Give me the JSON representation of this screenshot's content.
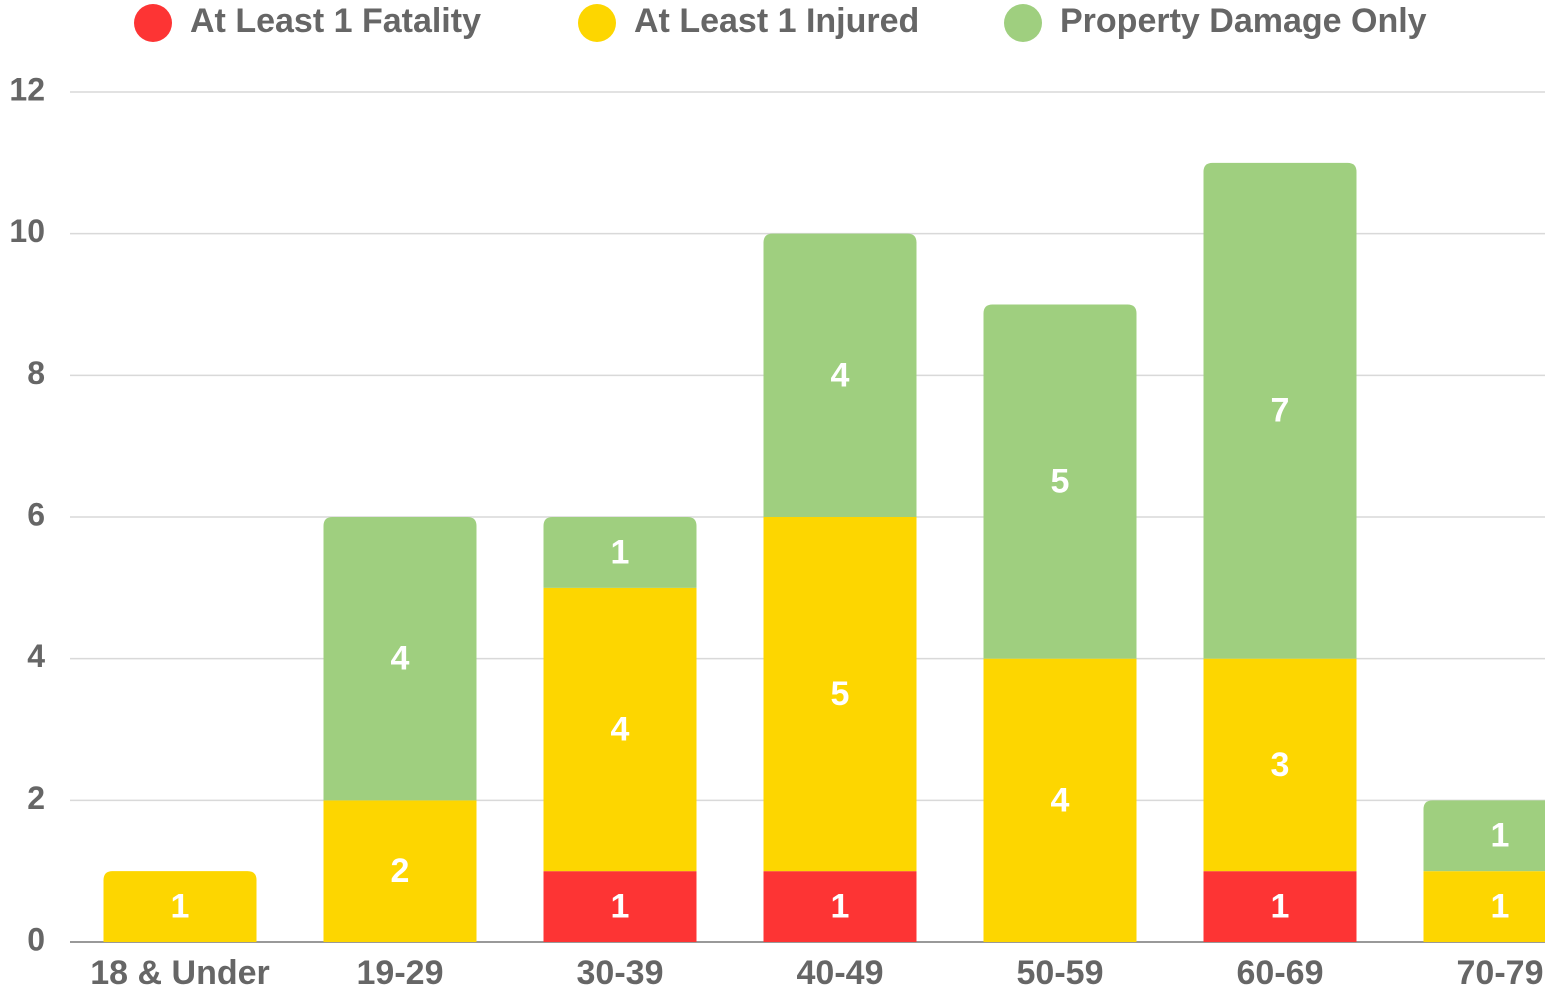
{
  "chart_data": {
    "type": "stacked-bar",
    "categories": [
      "18 & Under",
      "19-29",
      "30-39",
      "40-49",
      "50-59",
      "60-69",
      "70-79"
    ],
    "series": [
      {
        "name": "At Least 1 Fatality",
        "color": "#fd3434",
        "values": [
          null,
          null,
          1,
          1,
          null,
          1,
          null
        ]
      },
      {
        "name": "At Least 1 Injured",
        "color": "#fdd600",
        "values": [
          1,
          2,
          4,
          5,
          4,
          3,
          1
        ]
      },
      {
        "name": "Property Damage Only",
        "color": "#9fcf7f",
        "values": [
          null,
          4,
          1,
          4,
          5,
          7,
          1
        ]
      }
    ],
    "ylim": [
      0,
      12
    ],
    "yticks": [
      0,
      2,
      4,
      6,
      8,
      10,
      12
    ],
    "grid": true,
    "legend": "top"
  }
}
